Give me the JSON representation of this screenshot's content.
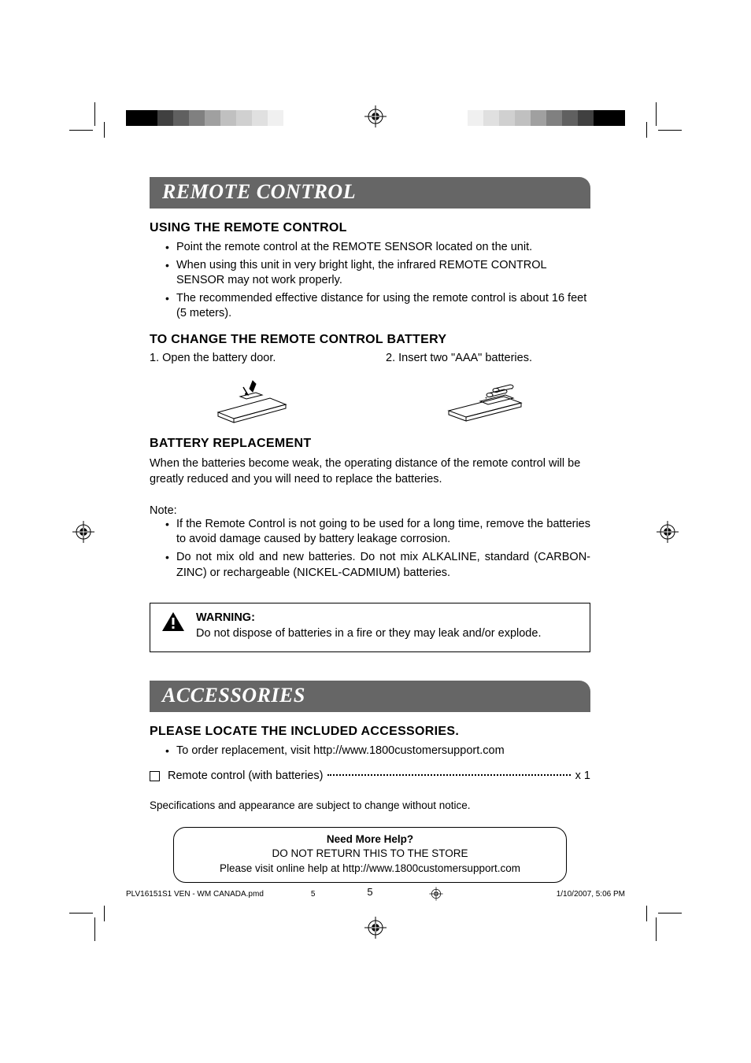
{
  "title1": "REMOTE CONTROL",
  "sub1": "USING THE REMOTE CONTROL",
  "bullets1": [
    "Point the remote control at the REMOTE SENSOR located on the unit.",
    "When using this unit in very bright light, the infrared REMOTE CONTROL SENSOR may not work properly.",
    "The recommended effective distance for using the remote control is about 16 feet (5 meters)."
  ],
  "sub2": "TO CHANGE THE REMOTE CONTROL BATTERY",
  "step1": "1. Open the battery door.",
  "step2": "2. Insert two \"AAA\" batteries.",
  "sub3": "BATTERY REPLACEMENT",
  "para1": "When the batteries become weak, the operating distance of the remote control will be greatly reduced and you will need to replace the batteries.",
  "note_label": "Note:",
  "bullets2": [
    "If the Remote Control is not going to be used for a long time, remove the batteries to avoid damage caused by battery leakage corrosion.",
    "Do not mix old and new batteries. Do not mix ALKALINE, standard (CARBON-ZINC) or rechargeable (NICKEL-CADMIUM) batteries."
  ],
  "warn_title": "WARNING:",
  "warn_text": "Do not dispose of batteries in a fire or they may leak and/or explode.",
  "title2": "ACCESSORIES",
  "sub4": "PLEASE LOCATE THE INCLUDED ACCESSORIES.",
  "bullets3": [
    "To order replacement, visit http://www.1800customersupport.com"
  ],
  "acc_item": "Remote control (with batteries)",
  "acc_qty": "x 1",
  "spec_note": "Specifications and appearance are subject to change without notice.",
  "help_t1": "Need More Help?",
  "help_t2": "DO NOT RETURN THIS TO THE STORE",
  "help_t3": "Please visit online help at http://www.1800customersupport.com",
  "page_num": "5",
  "footer_file": "PLV16151S1 VEN - WM CANADA.pmd",
  "footer_pg": "5",
  "footer_date": "1/10/2007, 5:06 PM",
  "color_bar_left": [
    "#000000",
    "#000000",
    "#404040",
    "#606060",
    "#808080",
    "#a0a0a0",
    "#c0c0c0",
    "#d0d0d0",
    "#e0e0e0",
    "#f0f0f0",
    "#ffffff"
  ],
  "color_bar_right": [
    "#ffffff",
    "#f0f0f0",
    "#e0e0e0",
    "#d0d0d0",
    "#c0c0c0",
    "#a0a0a0",
    "#808080",
    "#606060",
    "#404040",
    "#000000",
    "#000000"
  ],
  "header_bg": "#666666",
  "header_fg": "#ffffff",
  "body_color": "#000000",
  "page_bg": "#ffffff"
}
